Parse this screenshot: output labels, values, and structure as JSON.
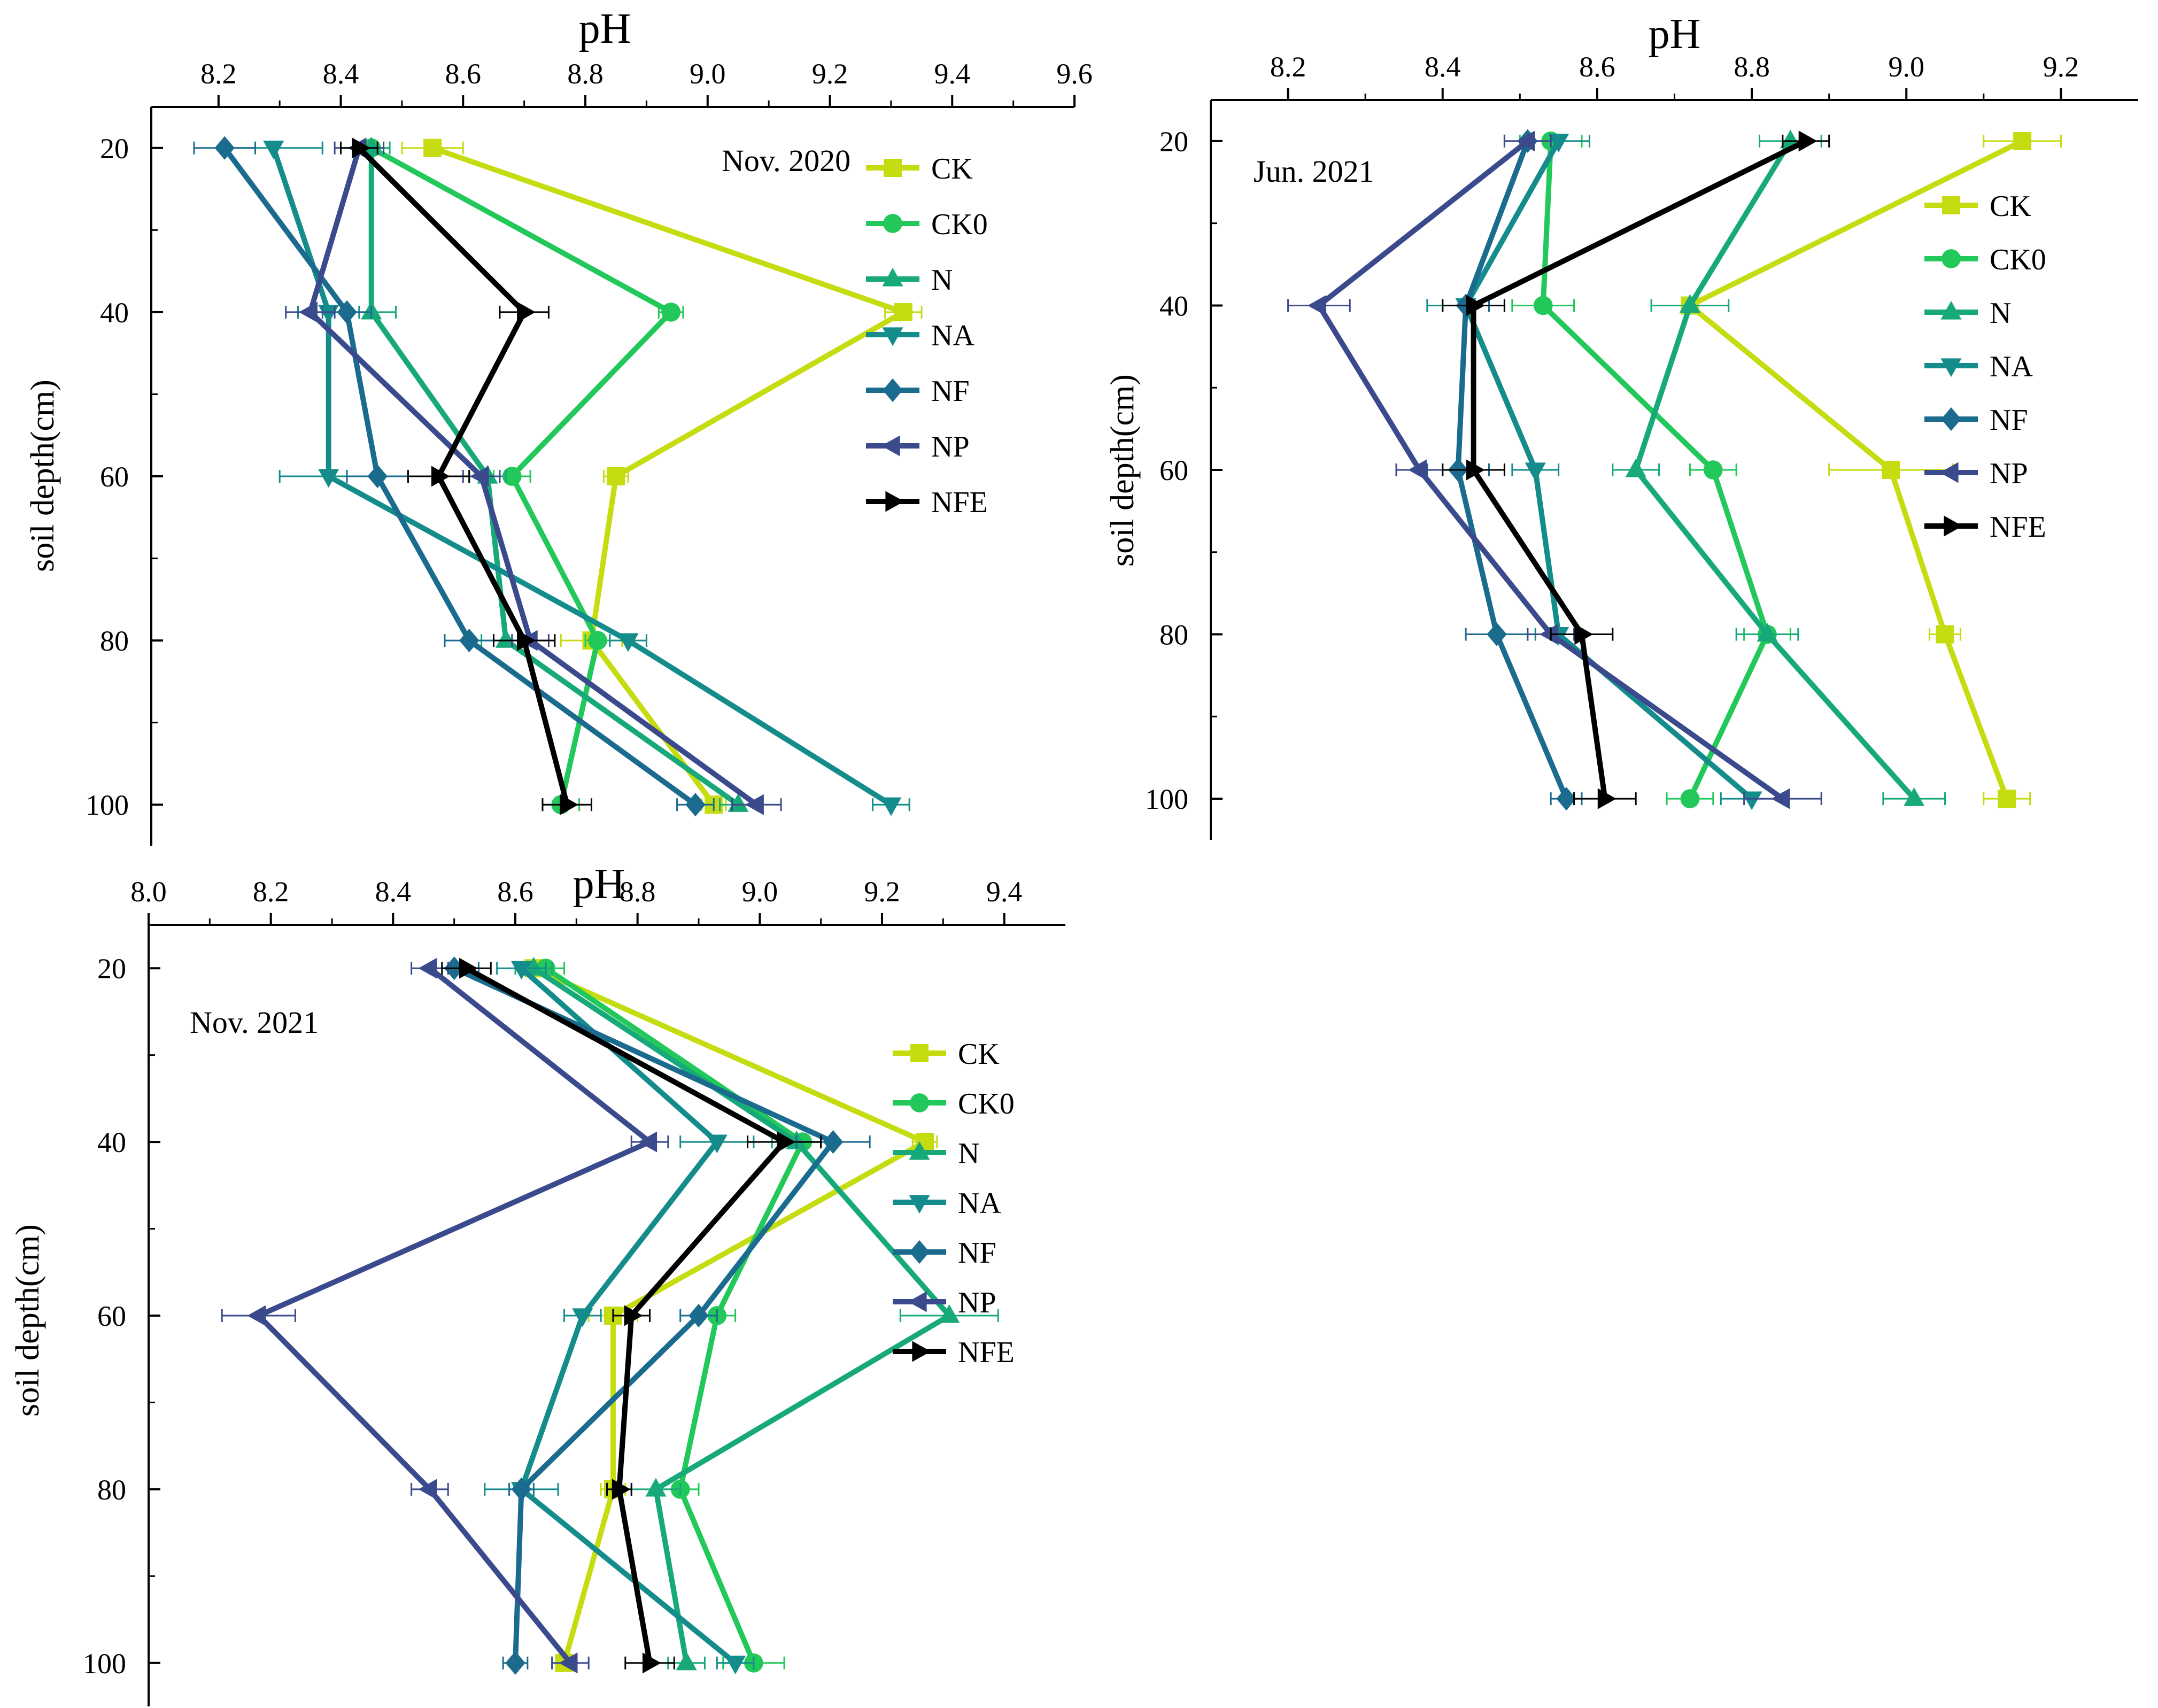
{
  "chart_data": [
    {
      "type": "line",
      "title": "Nov. 2020",
      "xlabel": "pH",
      "ylabel": "soil depth(cm)",
      "xlim": [
        8.09,
        9.6
      ],
      "ylim": [
        15,
        105
      ],
      "xticks": [
        8.2,
        8.4,
        8.6,
        8.8,
        9.0,
        9.2,
        9.4,
        9.6
      ],
      "xtick_labels": [
        "8.2",
        "8.4",
        "8.6",
        "8.8",
        "9.0",
        "9.2",
        "9.4",
        "9.6"
      ],
      "yticks": [
        20,
        40,
        60,
        80,
        100
      ],
      "ytick_labels": [
        "20",
        "40",
        "60",
        "80",
        "100"
      ],
      "depths": [
        20,
        40,
        60,
        80,
        100
      ],
      "legend_position": "top-right",
      "series": [
        {
          "name": "CK",
          "marker": "square",
          "color": "#C5DC10",
          "values": [
            8.55,
            9.32,
            8.85,
            8.81,
            9.01
          ],
          "errors": [
            0.05,
            0.03,
            0.02,
            0.05,
            0.02
          ]
        },
        {
          "name": "CK0",
          "marker": "circle",
          "color": "#22C85A",
          "values": [
            8.45,
            8.94,
            8.68,
            8.82,
            8.76
          ],
          "errors": [
            0.03,
            0.02,
            0.03,
            0.02,
            0.03
          ]
        },
        {
          "name": "N",
          "marker": "triangle-up",
          "color": "#17A97A",
          "values": [
            8.45,
            8.45,
            8.64,
            8.67,
            9.05
          ],
          "errors": [
            0.03,
            0.04,
            0.03,
            0.04,
            0.03
          ]
        },
        {
          "name": "NA",
          "marker": "triangle-down",
          "color": "#148C8C",
          "values": [
            8.29,
            8.38,
            8.38,
            8.87,
            9.3
          ],
          "errors": [
            0.08,
            0.05,
            0.08,
            0.03,
            0.03
          ]
        },
        {
          "name": "NF",
          "marker": "diamond",
          "color": "#1A6B8E",
          "values": [
            8.21,
            8.41,
            8.46,
            8.61,
            8.98
          ],
          "errors": [
            0.05,
            0.04,
            0.05,
            0.04,
            0.03
          ]
        },
        {
          "name": "NP",
          "marker": "triangle-left",
          "color": "#3B4A8C",
          "values": [
            8.43,
            8.35,
            8.63,
            8.71,
            9.08
          ],
          "errors": [
            0.04,
            0.04,
            0.03,
            0.03,
            0.04
          ]
        },
        {
          "name": "NFE",
          "marker": "triangle-right",
          "color": "#000000",
          "values": [
            8.43,
            8.7,
            8.56,
            8.7,
            8.77
          ],
          "errors": [
            0.03,
            0.04,
            0.05,
            0.05,
            0.04
          ]
        }
      ]
    },
    {
      "type": "line",
      "title": "Jun. 2021",
      "xlabel": "pH",
      "ylabel": "soil depth(cm)",
      "xlim": [
        8.1,
        9.3
      ],
      "ylim": [
        15,
        105
      ],
      "xticks": [
        8.2,
        8.4,
        8.6,
        8.8,
        9.0,
        9.2
      ],
      "xtick_labels": [
        "8.2",
        "8.4",
        "8.6",
        "8.8",
        "9.0",
        "9.2"
      ],
      "yticks": [
        20,
        40,
        60,
        80,
        100
      ],
      "ytick_labels": [
        "20",
        "40",
        "60",
        "80",
        "100"
      ],
      "depths": [
        20,
        40,
        60,
        80,
        100
      ],
      "legend_position": "right",
      "series": [
        {
          "name": "CK",
          "marker": "square",
          "color": "#C5DC10",
          "values": [
            9.15,
            8.72,
            8.98,
            9.05,
            9.13
          ],
          "errors": [
            0.05,
            0.05,
            0.08,
            0.02,
            0.03
          ]
        },
        {
          "name": "CK0",
          "marker": "circle",
          "color": "#22C85A",
          "values": [
            8.54,
            8.53,
            8.75,
            8.82,
            8.72
          ],
          "errors": [
            0.04,
            0.04,
            0.03,
            0.03,
            0.03
          ]
        },
        {
          "name": "N",
          "marker": "triangle-up",
          "color": "#17A97A",
          "values": [
            8.85,
            8.72,
            8.65,
            8.82,
            9.01
          ],
          "errors": [
            0.04,
            0.05,
            0.03,
            0.04,
            0.04
          ]
        },
        {
          "name": "NA",
          "marker": "triangle-down",
          "color": "#148C8C",
          "values": [
            8.55,
            8.43,
            8.52,
            8.55,
            8.8
          ],
          "errors": [
            0.04,
            0.05,
            0.03,
            0.03,
            0.04
          ]
        },
        {
          "name": "NF",
          "marker": "diamond",
          "color": "#1A6B8E",
          "values": [
            8.51,
            8.43,
            8.42,
            8.47,
            8.56
          ],
          "errors": [
            0.03,
            0.03,
            0.04,
            0.04,
            0.02
          ]
        },
        {
          "name": "NP",
          "marker": "triangle-left",
          "color": "#3B4A8C",
          "values": [
            8.51,
            8.24,
            8.37,
            8.54,
            8.84
          ],
          "errors": [
            0.03,
            0.04,
            0.03,
            0.03,
            0.05
          ]
        },
        {
          "name": "NFE",
          "marker": "triangle-right",
          "color": "#000000",
          "values": [
            8.87,
            8.44,
            8.44,
            8.58,
            8.61
          ],
          "errors": [
            0.03,
            0.04,
            0.04,
            0.04,
            0.04
          ]
        }
      ]
    },
    {
      "type": "line",
      "title": "Nov. 2021",
      "xlabel": "pH",
      "ylabel": "soil depth(cm)",
      "xlim": [
        8.0,
        9.5
      ],
      "ylim": [
        15,
        105
      ],
      "xticks": [
        8.0,
        8.2,
        8.4,
        8.6,
        8.8,
        9.0,
        9.2,
        9.4
      ],
      "xtick_labels": [
        "8.0",
        "8.2",
        "8.4",
        "8.6",
        "8.8",
        "9.0",
        "9.2",
        "9.4"
      ],
      "yticks": [
        20,
        40,
        60,
        80,
        100
      ],
      "ytick_labels": [
        "20",
        "40",
        "60",
        "80",
        "100"
      ],
      "depths": [
        20,
        40,
        60,
        80,
        100
      ],
      "legend_position": "right",
      "series": [
        {
          "name": "CK",
          "marker": "square",
          "color": "#C5DC10",
          "values": [
            8.63,
            9.27,
            8.76,
            8.76,
            8.68
          ],
          "errors": [
            0.03,
            0.02,
            0.04,
            0.02,
            0.02
          ]
        },
        {
          "name": "CK0",
          "marker": "circle",
          "color": "#22C85A",
          "values": [
            8.65,
            9.07,
            8.93,
            8.87,
            8.99
          ],
          "errors": [
            0.03,
            0.03,
            0.03,
            0.03,
            0.05
          ]
        },
        {
          "name": "N",
          "marker": "triangle-up",
          "color": "#17A97A",
          "values": [
            8.63,
            9.06,
            9.31,
            8.83,
            8.88
          ],
          "errors": [
            0.03,
            0.04,
            0.08,
            0.04,
            0.03
          ]
        },
        {
          "name": "NA",
          "marker": "triangle-down",
          "color": "#148C8C",
          "values": [
            8.61,
            8.93,
            8.71,
            8.61,
            8.96
          ],
          "errors": [
            0.04,
            0.06,
            0.03,
            0.06,
            0.03
          ]
        },
        {
          "name": "NF",
          "marker": "diamond",
          "color": "#1A6B8E",
          "values": [
            8.5,
            9.12,
            8.9,
            8.61,
            8.6
          ],
          "errors": [
            0.04,
            0.06,
            0.03,
            0.02,
            0.02
          ]
        },
        {
          "name": "NP",
          "marker": "triangle-left",
          "color": "#3B4A8C",
          "values": [
            8.46,
            8.82,
            8.18,
            8.46,
            8.69
          ],
          "errors": [
            0.03,
            0.03,
            0.06,
            0.03,
            0.03
          ]
        },
        {
          "name": "NFE",
          "marker": "triangle-right",
          "color": "#000000",
          "values": [
            8.52,
            9.04,
            8.79,
            8.77,
            8.82
          ],
          "errors": [
            0.04,
            0.06,
            0.03,
            0.02,
            0.04
          ]
        }
      ]
    }
  ]
}
